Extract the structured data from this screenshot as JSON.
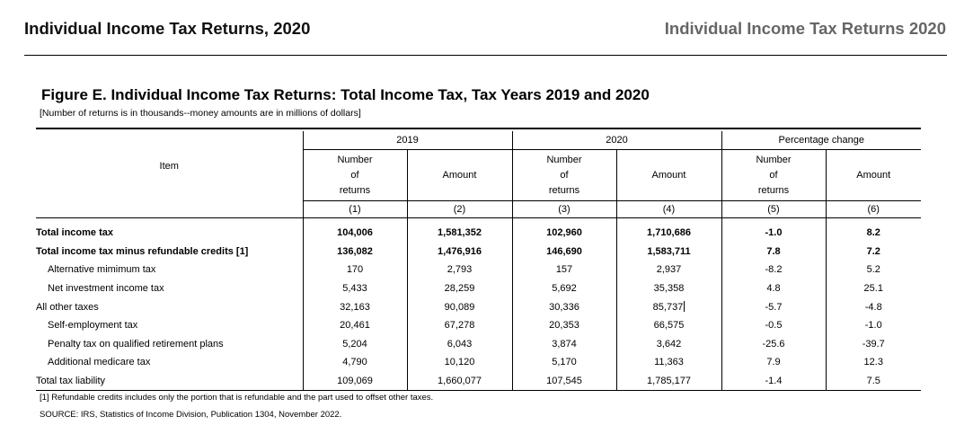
{
  "header": {
    "left_title": "Individual Income Tax Returns, 2020",
    "right_title": "Individual Income Tax Returns 2020"
  },
  "figure": {
    "title": "Figure E.  Individual Income Tax Returns: Total Income Tax, Tax Years 2019 and 2020",
    "subtitle": "[Number of returns is in thousands--money amounts are in millions of dollars]"
  },
  "table": {
    "item_header": "Item",
    "groups": [
      "2019",
      "2020",
      "Percentage change"
    ],
    "subheaders": {
      "number_line1": "Number",
      "number_line2": "of",
      "number_line3": "returns",
      "amount": "Amount"
    },
    "col_numbers": [
      "(1)",
      "(2)",
      "(3)",
      "(4)",
      "(5)",
      "(6)"
    ],
    "rows": [
      {
        "label": "Total income tax",
        "bold": true,
        "indent": false,
        "values": [
          "104,006",
          "1,581,352",
          "102,960",
          "1,710,686",
          "-1.0",
          "8.2"
        ]
      },
      {
        "label": "Total income tax minus refundable credits [1]",
        "bold": true,
        "indent": false,
        "values": [
          "136,082",
          "1,476,916",
          "146,690",
          "1,583,711",
          "7.8",
          "7.2"
        ]
      },
      {
        "label": "Alternative mimimum tax",
        "bold": false,
        "indent": true,
        "values": [
          "170",
          "2,793",
          "157",
          "2,937",
          "-8.2",
          "5.2"
        ]
      },
      {
        "label": "Net investment income tax",
        "bold": false,
        "indent": true,
        "values": [
          "5,433",
          "28,259",
          "5,692",
          "35,358",
          "4.8",
          "25.1"
        ]
      },
      {
        "label": "All other taxes",
        "bold": false,
        "indent": false,
        "values": [
          "32,163",
          "90,089",
          "30,336",
          "85,737",
          "-5.7",
          "-4.8"
        ]
      },
      {
        "label": "Self-employment tax",
        "bold": false,
        "indent": true,
        "values": [
          "20,461",
          "67,278",
          "20,353",
          "66,575",
          "-0.5",
          "-1.0"
        ]
      },
      {
        "label": "Penalty tax on qualified retirement plans",
        "bold": false,
        "indent": true,
        "values": [
          "5,204",
          "6,043",
          "3,874",
          "3,642",
          "-25.6",
          "-39.7"
        ]
      },
      {
        "label": "Additional medicare tax",
        "bold": false,
        "indent": true,
        "values": [
          "4,790",
          "10,120",
          "5,170",
          "11,363",
          "7.9",
          "12.3"
        ]
      },
      {
        "label": "Total tax liability",
        "bold": false,
        "indent": false,
        "values": [
          "109,069",
          "1,660,077",
          "107,545",
          "1,785,177",
          "-1.4",
          "7.5"
        ]
      }
    ]
  },
  "footnotes": {
    "note1": "[1] Refundable credits includes only the portion that is refundable and the part used to offset other taxes.",
    "source": "SOURCE: IRS, Statistics of Income Division, Publication 1304, November 2022."
  }
}
